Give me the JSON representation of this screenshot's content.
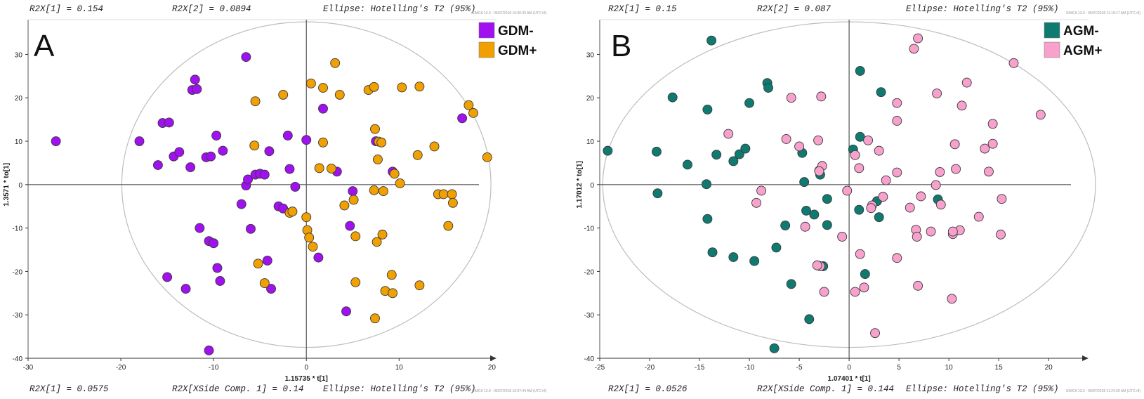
{
  "chart_data": [
    {
      "panel": "A",
      "type": "scatter",
      "header": {
        "r2x1": "R2X[1] = 0.154",
        "r2x2": "R2X[2] = 0.0894",
        "ellipse": "Ellipse: Hotelling's T2 (95%)"
      },
      "footer": {
        "r2x1": "R2X[1] = 0.0575",
        "r2x_side": "R2X[XSide Comp. 1] = 0.14",
        "ellipse": "Ellipse: Hotelling's T2 (95%)"
      },
      "stamp_top": "SIMCA 13.0 - 06/07/2018 10:06:43 AM (UTC+8)",
      "stamp_bottom": "SIMCA 13.0 - 06/07/2018 10:07:44 AM (UTC+8)",
      "xlabel": "1.15735 * t[1]",
      "ylabel": "1.3571 * to[1]",
      "xlim": [
        -30,
        20.5
      ],
      "ylim": [
        -40,
        38
      ],
      "xticks": [
        -30,
        -20,
        -10,
        0,
        10,
        20
      ],
      "yticks": [
        -40,
        -30,
        -20,
        -10,
        0,
        10,
        20,
        30
      ],
      "ellipse": {
        "rx": 19.9,
        "ry": 37.5
      },
      "series": [
        {
          "name": "GDM-",
          "color": "#a010f0",
          "points": [
            [
              -27,
              10
            ],
            [
              -18,
              10
            ],
            [
              -16,
              4.5
            ],
            [
              -15.5,
              14.2
            ],
            [
              -14.8,
              14.3
            ],
            [
              -14.3,
              6.5
            ],
            [
              -13.7,
              7.5
            ],
            [
              -12.5,
              4
            ],
            [
              -12.3,
              21.8
            ],
            [
              -12,
              24.2
            ],
            [
              -11.8,
              22
            ],
            [
              -10.8,
              6.3
            ],
            [
              -10.3,
              6.5
            ],
            [
              -9.7,
              11.3
            ],
            [
              -9,
              7.8
            ],
            [
              -7,
              -4.5
            ],
            [
              -6.5,
              29.4
            ],
            [
              -6.5,
              -0.2
            ],
            [
              -6.3,
              1.2
            ],
            [
              -5.5,
              2.3
            ],
            [
              -5,
              2.5
            ],
            [
              -4.5,
              2.3
            ],
            [
              -4,
              7.7
            ],
            [
              -3,
              -5
            ],
            [
              -2.5,
              -5.5
            ],
            [
              -2,
              11.3
            ],
            [
              -1.8,
              3.6
            ],
            [
              -1.2,
              -0.5
            ],
            [
              0,
              10.3
            ],
            [
              1.3,
              -16.8
            ],
            [
              1.8,
              17.5
            ],
            [
              3.3,
              3
            ],
            [
              5,
              -1.5
            ],
            [
              4.7,
              -9.5
            ],
            [
              7.5,
              10
            ],
            [
              9.3,
              3
            ],
            [
              16.8,
              15.3
            ],
            [
              -11.5,
              -10
            ],
            [
              -10.5,
              -13
            ],
            [
              -10,
              -13.5
            ],
            [
              -9.6,
              -19.2
            ],
            [
              -9.3,
              -22.2
            ],
            [
              -6,
              -10.2
            ],
            [
              -4.2,
              -17.5
            ],
            [
              -3.8,
              -24
            ],
            [
              -15,
              -21.3
            ],
            [
              -13,
              -24
            ],
            [
              -10.5,
              -38.2
            ],
            [
              4.3,
              -29.2
            ]
          ]
        },
        {
          "name": "GDM+",
          "color": "#f0a000",
          "points": [
            [
              3.1,
              28
            ],
            [
              0.5,
              23.3
            ],
            [
              1.8,
              22.3
            ],
            [
              6.7,
              21.8
            ],
            [
              7.3,
              22.5
            ],
            [
              10.3,
              22.4
            ],
            [
              12.2,
              22.6
            ],
            [
              3.6,
              20.7
            ],
            [
              -2.5,
              20.7
            ],
            [
              -5.5,
              19.2
            ],
            [
              17.5,
              18.3
            ],
            [
              18,
              16.5
            ],
            [
              7.4,
              12.8
            ],
            [
              7.8,
              9.9
            ],
            [
              8.1,
              9.7
            ],
            [
              13.8,
              8.8
            ],
            [
              12,
              6.8
            ],
            [
              19.5,
              6.3
            ],
            [
              7.7,
              5.8
            ],
            [
              -5.6,
              9
            ],
            [
              1.8,
              9.7
            ],
            [
              1.4,
              3.8
            ],
            [
              2.7,
              3.7
            ],
            [
              9.5,
              2.5
            ],
            [
              10.1,
              0.3
            ],
            [
              7.3,
              -1.3
            ],
            [
              8.3,
              -1.5
            ],
            [
              14.2,
              -2.2
            ],
            [
              14.8,
              -2.2
            ],
            [
              15.7,
              -2.2
            ],
            [
              15.8,
              -4.2
            ],
            [
              4.1,
              -4.8
            ],
            [
              5.1,
              -3.5
            ],
            [
              -1.8,
              -6.5
            ],
            [
              -1.5,
              -6.2
            ],
            [
              0,
              -7.5
            ],
            [
              0.1,
              -10.5
            ],
            [
              0.3,
              -12.2
            ],
            [
              0.7,
              -14.3
            ],
            [
              5.3,
              -11.9
            ],
            [
              7.6,
              -13.2
            ],
            [
              8.2,
              -11.5
            ],
            [
              15.3,
              -9.5
            ],
            [
              -5.2,
              -18.2
            ],
            [
              -4.5,
              -22.7
            ],
            [
              5.3,
              -22.5
            ],
            [
              9.2,
              -20.8
            ],
            [
              12.2,
              -23.2
            ],
            [
              8.5,
              -24.5
            ],
            [
              9.3,
              -25
            ],
            [
              7.4,
              -30.8
            ]
          ]
        }
      ]
    },
    {
      "panel": "B",
      "type": "scatter",
      "header": {
        "r2x1": "R2X[1] = 0.15",
        "r2x2": "R2X[2] = 0.087",
        "ellipse": "Ellipse: Hotelling's T2 (95%)"
      },
      "footer": {
        "r2x1": "R2X[1] = 0.0526",
        "r2x_side": "R2X[XSide Comp. 1] = 0.144",
        "ellipse": "Ellipse: Hotelling's T2 (95%)"
      },
      "stamp_top": "SIMCA 13.0 - 06/07/2018 11:19:17 AM (UTC+8)",
      "stamp_bottom": "SIMCA 13.0 - 06/07/2018 11:24:20 AM (UTC+8)",
      "xlabel": "1.07401 * t[1]",
      "ylabel": "1.17012 * to[1]",
      "xlim": [
        -25,
        24
      ],
      "ylim": [
        -40,
        38
      ],
      "xticks": [
        -25,
        -20,
        -15,
        -10,
        -5,
        0,
        5,
        10,
        15,
        20
      ],
      "yticks": [
        -40,
        -30,
        -20,
        -10,
        0,
        10,
        20,
        30
      ],
      "ellipse": {
        "rx": 24.7,
        "ry": 37.5
      },
      "series": [
        {
          "name": "AGM-",
          "color": "#0f7a70",
          "points": [
            [
              -13.8,
              33.2
            ],
            [
              -17.7,
              20.1
            ],
            [
              -14.2,
              17.3
            ],
            [
              -10,
              18.8
            ],
            [
              -8.2,
              23.4
            ],
            [
              -8.1,
              22.3
            ],
            [
              -24.2,
              7.8
            ],
            [
              -19.3,
              7.6
            ],
            [
              -16.2,
              4.6
            ],
            [
              -13.3,
              6.9
            ],
            [
              -11.6,
              5.4
            ],
            [
              -11,
              7
            ],
            [
              -10.4,
              8.3
            ],
            [
              -4.7,
              7.3
            ],
            [
              -14.3,
              0.1
            ],
            [
              -19.2,
              -2
            ],
            [
              -14.2,
              -7.9
            ],
            [
              -13.7,
              -15.6
            ],
            [
              -11.6,
              -16.7
            ],
            [
              -9.5,
              -17.6
            ],
            [
              -7.3,
              -14.5
            ],
            [
              -6.4,
              -9.4
            ],
            [
              -4.5,
              0.6
            ],
            [
              -4.3,
              -6
            ],
            [
              -3.5,
              -6.9
            ],
            [
              -2.9,
              2.3
            ],
            [
              -3,
              3.2
            ],
            [
              -2.2,
              -3.3
            ],
            [
              -2.2,
              -9.3
            ],
            [
              -2.6,
              -18.8
            ],
            [
              -5.8,
              -22.9
            ],
            [
              -4,
              -31
            ],
            [
              -7.5,
              -37.7
            ],
            [
              1.1,
              26.2
            ],
            [
              3.2,
              21.3
            ],
            [
              1.1,
              11
            ],
            [
              0.4,
              8.1
            ],
            [
              2.8,
              -3.8
            ],
            [
              3,
              -7.5
            ],
            [
              1,
              -5.8
            ],
            [
              1.6,
              -20.6
            ],
            [
              8.9,
              -3.4
            ]
          ]
        },
        {
          "name": "AGM+",
          "color": "#f7a1cc",
          "points": [
            [
              6.9,
              33.7
            ],
            [
              6.5,
              31.3
            ],
            [
              16.5,
              28
            ],
            [
              11.8,
              23.5
            ],
            [
              8.8,
              21
            ],
            [
              4.8,
              18.8
            ],
            [
              11.3,
              18.2
            ],
            [
              14.4,
              14
            ],
            [
              19.2,
              16.1
            ],
            [
              4.8,
              14.7
            ],
            [
              -2.8,
              20.3
            ],
            [
              -5.8,
              20
            ],
            [
              -12.1,
              11.7
            ],
            [
              -6.3,
              10.5
            ],
            [
              -3.1,
              10.2
            ],
            [
              -5,
              8.8
            ],
            [
              1.9,
              10.2
            ],
            [
              3,
              7.8
            ],
            [
              0.6,
              6.8
            ],
            [
              10.6,
              9.3
            ],
            [
              14.4,
              9.4
            ],
            [
              13.6,
              8.3
            ],
            [
              -2.7,
              4.3
            ],
            [
              -3,
              3.1
            ],
            [
              1,
              3.8
            ],
            [
              4.8,
              2.8
            ],
            [
              3.7,
              1
            ],
            [
              9.1,
              2.9
            ],
            [
              10.7,
              3.6
            ],
            [
              14,
              3
            ],
            [
              8.7,
              -0.1
            ],
            [
              -8.8,
              -1.4
            ],
            [
              -9.3,
              -4.2
            ],
            [
              -0.2,
              -1.4
            ],
            [
              2.3,
              -4.8
            ],
            [
              2.2,
              -5.4
            ],
            [
              3.4,
              -2.8
            ],
            [
              6.1,
              -5.3
            ],
            [
              7.2,
              -2.7
            ],
            [
              9.2,
              -4.6
            ],
            [
              15.3,
              -3.3
            ],
            [
              -4.4,
              -9.7
            ],
            [
              -0.7,
              -12
            ],
            [
              6.7,
              -10.4
            ],
            [
              6.8,
              -12
            ],
            [
              8.2,
              -10.8
            ],
            [
              10.4,
              -11.4
            ],
            [
              11.1,
              -10.5
            ],
            [
              13,
              -7.4
            ],
            [
              15.2,
              -11.5
            ],
            [
              10.4,
              -10.8
            ],
            [
              1.1,
              -16
            ],
            [
              4.8,
              -16.9
            ],
            [
              -2.9,
              -18.8
            ],
            [
              -3.2,
              -18.6
            ],
            [
              -2.5,
              -24.7
            ],
            [
              0.6,
              -24.7
            ],
            [
              1.5,
              -23.7
            ],
            [
              6.9,
              -23.3
            ],
            [
              10.3,
              -26.3
            ],
            [
              2.6,
              -34.2
            ]
          ]
        }
      ]
    }
  ]
}
